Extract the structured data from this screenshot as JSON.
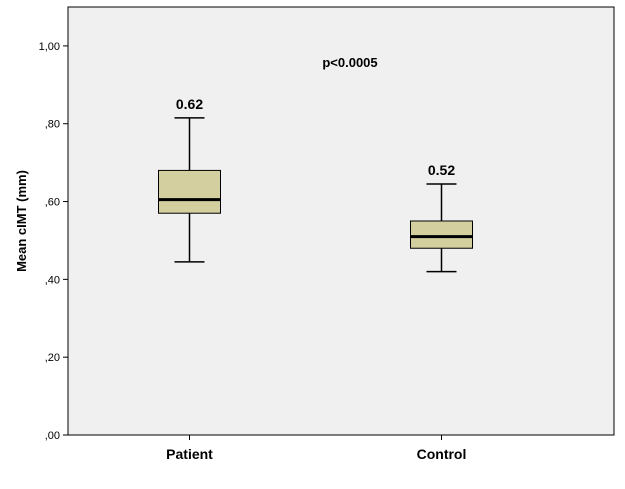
{
  "chart_data": {
    "type": "box",
    "ylabel": "Mean cIMT (mm)",
    "ylim": [
      0,
      1.1
    ],
    "y_ticks": [
      {
        "value": 0.0,
        "label": ",00"
      },
      {
        "value": 0.2,
        "label": ",20"
      },
      {
        "value": 0.4,
        "label": ",40"
      },
      {
        "value": 0.6,
        "label": ",60"
      },
      {
        "value": 0.8,
        "label": ",80"
      },
      {
        "value": 1.0,
        "label": "1,00"
      }
    ],
    "categories": [
      "Patient",
      "Control"
    ],
    "boxes": [
      {
        "name": "Patient",
        "whisker_low": 0.445,
        "q1": 0.57,
        "median": 0.605,
        "q3": 0.68,
        "whisker_high": 0.815,
        "label": "0.62"
      },
      {
        "name": "Control",
        "whisker_low": 0.42,
        "q1": 0.48,
        "median": 0.51,
        "q3": 0.55,
        "whisker_high": 0.645,
        "label": "0.52"
      }
    ],
    "annotation": "p<0.0005",
    "box_fill": "#d4cf9e",
    "plot_background": "#f0f0f0",
    "grid": false
  }
}
